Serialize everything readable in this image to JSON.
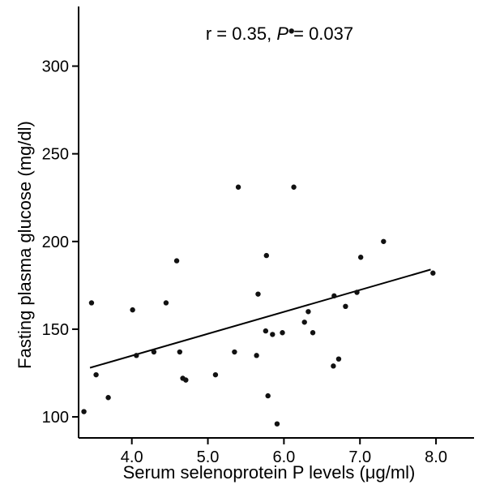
{
  "chart_data": {
    "type": "scatter",
    "title": "",
    "xlabel": "Serum selenoprotein P levels (μg/ml)",
    "ylabel": "Fasting plasma glucose (mg/dl)",
    "xlim": [
      3.3,
      8.5
    ],
    "ylim": [
      88,
      334
    ],
    "x_ticks": [
      4.0,
      5.0,
      6.0,
      7.0,
      8.0
    ],
    "x_tick_labels": [
      "4.0",
      "5.0",
      "6.0",
      "7.0",
      "8.0"
    ],
    "y_ticks": [
      100,
      150,
      200,
      250,
      300
    ],
    "y_tick_labels": [
      "100",
      "150",
      "200",
      "250",
      "300"
    ],
    "grid": false,
    "annotation": {
      "r_text": "r = 0.35, ",
      "p_symbol": "P",
      "p_text": " = 0.037"
    },
    "points": [
      {
        "x": 3.37,
        "y": 103
      },
      {
        "x": 3.47,
        "y": 165
      },
      {
        "x": 3.53,
        "y": 124
      },
      {
        "x": 3.69,
        "y": 111
      },
      {
        "x": 4.01,
        "y": 161
      },
      {
        "x": 4.06,
        "y": 135
      },
      {
        "x": 4.29,
        "y": 137
      },
      {
        "x": 4.45,
        "y": 165
      },
      {
        "x": 4.59,
        "y": 189
      },
      {
        "x": 4.63,
        "y": 137
      },
      {
        "x": 4.67,
        "y": 122
      },
      {
        "x": 4.71,
        "y": 121
      },
      {
        "x": 5.1,
        "y": 124
      },
      {
        "x": 5.35,
        "y": 137
      },
      {
        "x": 5.4,
        "y": 231
      },
      {
        "x": 5.64,
        "y": 135
      },
      {
        "x": 5.66,
        "y": 170
      },
      {
        "x": 5.76,
        "y": 149
      },
      {
        "x": 5.77,
        "y": 192
      },
      {
        "x": 5.79,
        "y": 112
      },
      {
        "x": 5.85,
        "y": 147
      },
      {
        "x": 5.91,
        "y": 96
      },
      {
        "x": 5.98,
        "y": 148
      },
      {
        "x": 6.1,
        "y": 320
      },
      {
        "x": 6.13,
        "y": 231
      },
      {
        "x": 6.27,
        "y": 154
      },
      {
        "x": 6.32,
        "y": 160
      },
      {
        "x": 6.38,
        "y": 148
      },
      {
        "x": 6.65,
        "y": 129
      },
      {
        "x": 6.66,
        "y": 169
      },
      {
        "x": 6.72,
        "y": 133
      },
      {
        "x": 6.81,
        "y": 163
      },
      {
        "x": 6.96,
        "y": 171
      },
      {
        "x": 7.01,
        "y": 191
      },
      {
        "x": 7.31,
        "y": 200
      },
      {
        "x": 7.96,
        "y": 182
      }
    ],
    "fit_line": {
      "x": [
        3.45,
        7.93
      ],
      "y": [
        128,
        184
      ]
    }
  }
}
